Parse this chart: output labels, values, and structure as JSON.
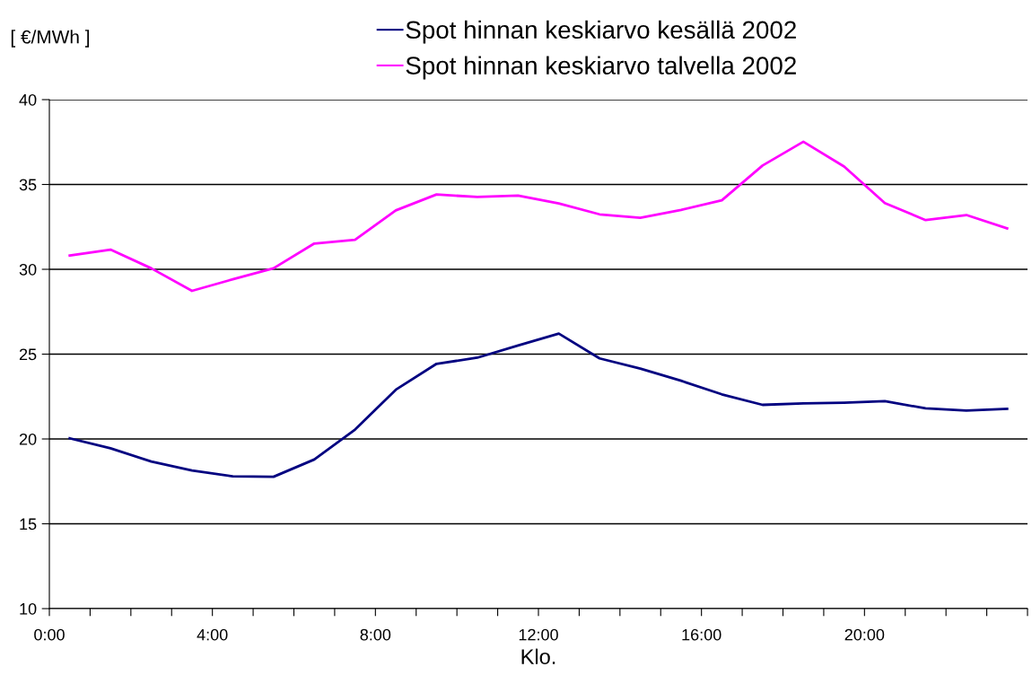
{
  "chart_data": {
    "type": "line",
    "ylabel": "[ €/MWh ]",
    "xlabel": "Klo.",
    "x": [
      0.5,
      1.5,
      2.5,
      3.5,
      4.5,
      5.5,
      6.5,
      7.5,
      8.5,
      9.5,
      10.5,
      11.5,
      12.5,
      13.5,
      14.5,
      15.5,
      16.5,
      17.5,
      18.5,
      19.5,
      20.5,
      21.5,
      22.5,
      23.5
    ],
    "series": [
      {
        "name": "Spot hinnan keskiarvo kesällä 2002",
        "color": "#000080",
        "values": [
          20.04,
          19.45,
          18.67,
          18.14,
          17.8,
          17.77,
          18.79,
          20.55,
          22.9,
          24.43,
          24.79,
          25.51,
          26.21,
          24.75,
          24.15,
          23.43,
          22.63,
          22.01,
          22.1,
          22.14,
          22.23,
          21.8,
          21.67,
          21.78
        ]
      },
      {
        "name": "Spot hinnan keskiarvo talvella 2002",
        "color": "#ff00ff",
        "values": [
          30.81,
          31.16,
          30.06,
          28.73,
          29.41,
          30.06,
          31.52,
          31.74,
          33.47,
          34.41,
          34.26,
          34.34,
          33.88,
          33.24,
          33.03,
          33.5,
          34.07,
          36.12,
          37.52,
          36.06,
          33.9,
          32.9,
          33.2,
          32.41
        ]
      }
    ],
    "xlim": [
      0,
      24
    ],
    "xticks": [
      {
        "value": 0,
        "label": "0:00"
      },
      {
        "value": 1,
        "label": null
      },
      {
        "value": 2,
        "label": null
      },
      {
        "value": 3,
        "label": null
      },
      {
        "value": 4,
        "label": "4:00"
      },
      {
        "value": 5,
        "label": null
      },
      {
        "value": 6,
        "label": null
      },
      {
        "value": 7,
        "label": null
      },
      {
        "value": 8,
        "label": "8:00"
      },
      {
        "value": 9,
        "label": null
      },
      {
        "value": 10,
        "label": null
      },
      {
        "value": 11,
        "label": null
      },
      {
        "value": 12,
        "label": "12:00"
      },
      {
        "value": 13,
        "label": null
      },
      {
        "value": 14,
        "label": null
      },
      {
        "value": 15,
        "label": null
      },
      {
        "value": 16,
        "label": "16:00"
      },
      {
        "value": 17,
        "label": null
      },
      {
        "value": 18,
        "label": null
      },
      {
        "value": 19,
        "label": null
      },
      {
        "value": 20,
        "label": "20:00"
      },
      {
        "value": 21,
        "label": null
      },
      {
        "value": 22,
        "label": null
      },
      {
        "value": 23,
        "label": null
      },
      {
        "value": 24,
        "label": null
      }
    ],
    "ylim": [
      10,
      40
    ],
    "yticks": [
      10,
      15,
      20,
      25,
      30,
      35,
      40
    ],
    "grid": "y",
    "legend": "top",
    "marker": "none",
    "line_style": "solid"
  }
}
